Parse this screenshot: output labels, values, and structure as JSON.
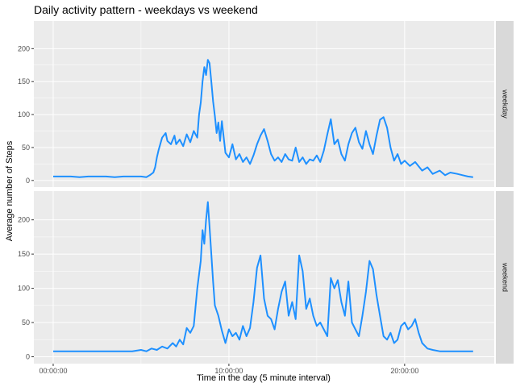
{
  "chart_data": {
    "type": "line",
    "title": "Daily activity pattern - weekdays vs weekend",
    "xlabel": "Time in the day (5 minute interval)",
    "ylabel": "Average number of Steps",
    "xlim": [
      -1.1,
      25.1
    ],
    "x_ticks": [
      0,
      10,
      20
    ],
    "x_tick_labels": [
      "00:00:00",
      "10:00:00",
      "20:00:00"
    ],
    "y_ticks": [
      0,
      50,
      100,
      150,
      200
    ],
    "y_tick_labels": [
      "0",
      "50",
      "100",
      "150",
      "200"
    ],
    "ylim": [
      -10,
      242
    ],
    "grid": true,
    "legend": "none",
    "line_color": "#1e90ff",
    "panel_background": "#ebebeb",
    "strip_background": "#d9d9d9",
    "panels": [
      {
        "name": "weekday",
        "x": [
          0.0,
          0.5,
          1.0,
          1.5,
          2.0,
          2.5,
          3.0,
          3.5,
          4.0,
          4.5,
          5.0,
          5.3,
          5.5,
          5.7,
          5.8,
          5.9,
          6.0,
          6.2,
          6.4,
          6.5,
          6.7,
          6.9,
          7.0,
          7.2,
          7.4,
          7.6,
          7.8,
          8.0,
          8.2,
          8.3,
          8.4,
          8.5,
          8.6,
          8.7,
          8.8,
          8.9,
          9.0,
          9.1,
          9.2,
          9.3,
          9.4,
          9.5,
          9.6,
          9.8,
          10.0,
          10.2,
          10.4,
          10.6,
          10.8,
          11.0,
          11.2,
          11.4,
          11.6,
          11.8,
          12.0,
          12.2,
          12.4,
          12.6,
          12.8,
          13.0,
          13.2,
          13.4,
          13.6,
          13.8,
          14.0,
          14.2,
          14.4,
          14.6,
          14.8,
          15.0,
          15.2,
          15.4,
          15.6,
          15.8,
          16.0,
          16.2,
          16.4,
          16.6,
          16.8,
          17.0,
          17.2,
          17.4,
          17.6,
          17.8,
          18.0,
          18.2,
          18.4,
          18.6,
          18.8,
          19.0,
          19.2,
          19.4,
          19.6,
          19.8,
          20.0,
          20.3,
          20.6,
          21.0,
          21.3,
          21.6,
          22.0,
          22.3,
          22.6,
          23.0,
          23.3,
          23.6,
          23.9
        ],
        "y": [
          6,
          6,
          6,
          5,
          6,
          6,
          6,
          5,
          6,
          6,
          6,
          5,
          8,
          12,
          20,
          35,
          46,
          65,
          72,
          60,
          55,
          68,
          55,
          62,
          52,
          70,
          58,
          75,
          65,
          100,
          118,
          150,
          172,
          160,
          183,
          178,
          150,
          120,
          98,
          72,
          88,
          60,
          90,
          42,
          35,
          55,
          32,
          40,
          28,
          35,
          25,
          38,
          55,
          68,
          78,
          60,
          40,
          30,
          35,
          28,
          40,
          32,
          30,
          50,
          28,
          35,
          25,
          32,
          30,
          38,
          28,
          45,
          70,
          93,
          55,
          62,
          40,
          30,
          55,
          72,
          80,
          58,
          48,
          75,
          55,
          40,
          68,
          92,
          96,
          80,
          50,
          30,
          40,
          25,
          30,
          22,
          28,
          15,
          20,
          10,
          15,
          8,
          12,
          10,
          8,
          6,
          5
        ]
      },
      {
        "name": "weekend",
        "x": [
          0.0,
          0.5,
          1.0,
          1.5,
          2.0,
          2.5,
          3.0,
          3.5,
          4.0,
          4.5,
          5.0,
          5.3,
          5.6,
          5.9,
          6.2,
          6.5,
          6.8,
          7.0,
          7.2,
          7.4,
          7.6,
          7.8,
          8.0,
          8.2,
          8.4,
          8.5,
          8.6,
          8.7,
          8.8,
          8.9,
          9.0,
          9.1,
          9.2,
          9.4,
          9.6,
          9.8,
          10.0,
          10.2,
          10.4,
          10.6,
          10.8,
          11.0,
          11.2,
          11.4,
          11.6,
          11.8,
          12.0,
          12.2,
          12.4,
          12.6,
          12.8,
          13.0,
          13.2,
          13.4,
          13.6,
          13.8,
          14.0,
          14.2,
          14.4,
          14.6,
          14.8,
          15.0,
          15.2,
          15.4,
          15.6,
          15.8,
          16.0,
          16.2,
          16.4,
          16.6,
          16.8,
          17.0,
          17.2,
          17.4,
          17.6,
          17.8,
          18.0,
          18.2,
          18.4,
          18.6,
          18.8,
          19.0,
          19.2,
          19.4,
          19.6,
          19.8,
          20.0,
          20.2,
          20.4,
          20.6,
          20.8,
          21.0,
          21.3,
          21.6,
          22.0,
          22.5,
          23.0,
          23.5,
          23.9
        ],
        "y": [
          8,
          8,
          8,
          8,
          8,
          8,
          8,
          8,
          8,
          8,
          10,
          8,
          12,
          10,
          15,
          12,
          20,
          15,
          25,
          18,
          42,
          35,
          45,
          100,
          140,
          185,
          165,
          200,
          226,
          190,
          150,
          110,
          75,
          60,
          38,
          20,
          40,
          30,
          35,
          25,
          45,
          30,
          42,
          80,
          130,
          148,
          85,
          60,
          55,
          40,
          70,
          95,
          110,
          60,
          80,
          55,
          148,
          125,
          70,
          85,
          60,
          45,
          50,
          40,
          30,
          115,
          100,
          112,
          80,
          60,
          110,
          50,
          40,
          30,
          60,
          95,
          140,
          128,
          90,
          60,
          30,
          25,
          35,
          20,
          25,
          45,
          50,
          40,
          45,
          55,
          35,
          20,
          12,
          10,
          8,
          8,
          8,
          8,
          8
        ]
      }
    ]
  }
}
